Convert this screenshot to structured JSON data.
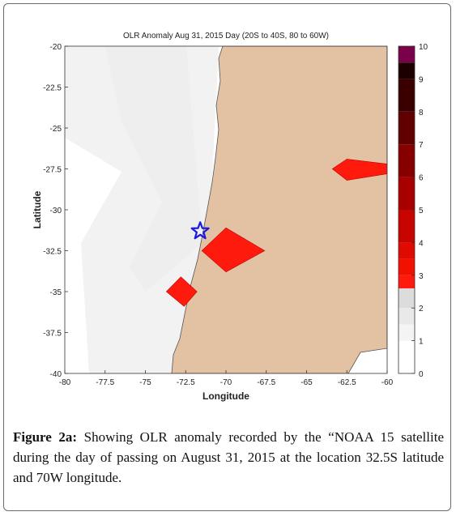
{
  "chart_data": {
    "type": "heatmap",
    "title": "OLR Anomaly Aug 31, 2015 Day (20S to 40S, 80 to 60W)",
    "xlabel": "Longitude",
    "ylabel": "Latitude",
    "xlim": [
      -80,
      -60
    ],
    "ylim": [
      -40,
      -20
    ],
    "x_ticks": [
      "-80",
      "-77.5",
      "-75",
      "-72.5",
      "-70",
      "-67.5",
      "-65",
      "-62.5",
      "-60"
    ],
    "y_ticks": [
      "-20",
      "-22.5",
      "-25",
      "-27.5",
      "-30",
      "-32.5",
      "-35",
      "-37.5",
      "-40"
    ],
    "grid": false,
    "colorbar": {
      "placement": "right",
      "range": [
        0,
        10
      ],
      "ticks": [
        "0",
        "1",
        "2",
        "3",
        "4",
        "5",
        "6",
        "7",
        "8",
        "9",
        "10"
      ]
    },
    "colors": {
      "land": "#e3c2a4",
      "ocean": "#f4f4f4",
      "anomaly_high": "#ff1a0e",
      "marker": "#1a1adf"
    },
    "marker": {
      "lon": -71.6,
      "lat": -31.3,
      "symbol": "star"
    },
    "anomaly_regions": [
      {
        "vertices": [
          [
            -71.5,
            -32.5
          ],
          [
            -70,
            -31.1
          ],
          [
            -67.6,
            -32.5
          ],
          [
            -70,
            -33.8
          ]
        ]
      },
      {
        "vertices": [
          [
            -73.7,
            -35
          ],
          [
            -72.8,
            -34.1
          ],
          [
            -71.8,
            -35
          ],
          [
            -72.6,
            -35.9
          ]
        ]
      },
      {
        "vertices": [
          [
            -63.4,
            -27.5
          ],
          [
            -62.5,
            -26.9
          ],
          [
            -60,
            -27.2
          ],
          [
            -60,
            -27.8
          ],
          [
            -62.5,
            -28.2
          ]
        ]
      }
    ]
  },
  "caption": {
    "label": "Figure 2a:",
    "text": " Showing OLR anomaly recorded by the “NOAA 15 satellite during the day of passing on August 31, 2015 at the location 32.5S latitude and 70W longitude."
  }
}
